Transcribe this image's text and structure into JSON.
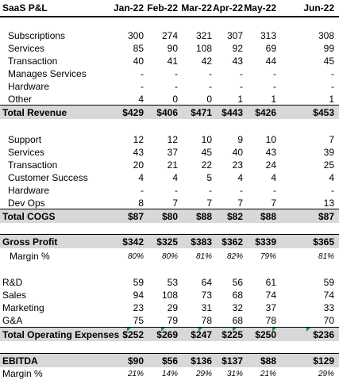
{
  "title": "SaaS P&L",
  "months": [
    "Jan-22",
    "Feb-22",
    "Mar-22",
    "Apr-22",
    "May-22",
    "Jun-22"
  ],
  "revenue": {
    "items": [
      {
        "label": "Subscriptions",
        "values": [
          "300",
          "274",
          "321",
          "307",
          "313",
          "308"
        ]
      },
      {
        "label": "Services",
        "values": [
          "85",
          "90",
          "108",
          "92",
          "69",
          "99"
        ]
      },
      {
        "label": "Transaction",
        "values": [
          "40",
          "41",
          "42",
          "43",
          "44",
          "45"
        ]
      },
      {
        "label": "Manages Services",
        "values": [
          "-",
          "-",
          "-",
          "-",
          "-",
          "-"
        ]
      },
      {
        "label": "Hardware",
        "values": [
          "-",
          "-",
          "-",
          "-",
          "-",
          "-"
        ]
      },
      {
        "label": "Other",
        "values": [
          "4",
          "0",
          "0",
          "1",
          "1",
          "1"
        ]
      }
    ],
    "total_label": "Total Revenue",
    "total_values": [
      "$429",
      "$406",
      "$471",
      "$443",
      "$426",
      "$453"
    ]
  },
  "cogs": {
    "items": [
      {
        "label": "Support",
        "values": [
          "12",
          "12",
          "10",
          "9",
          "10",
          "7"
        ]
      },
      {
        "label": "Services",
        "values": [
          "43",
          "37",
          "45",
          "40",
          "43",
          "39"
        ]
      },
      {
        "label": "Transaction",
        "values": [
          "20",
          "21",
          "22",
          "23",
          "24",
          "25"
        ]
      },
      {
        "label": "Customer Success",
        "values": [
          "4",
          "4",
          "5",
          "4",
          "4",
          "4"
        ]
      },
      {
        "label": "Hardware",
        "values": [
          "-",
          "-",
          "-",
          "-",
          "-",
          "-"
        ]
      },
      {
        "label": "Dev Ops",
        "values": [
          "8",
          "7",
          "7",
          "7",
          "7",
          "13"
        ]
      }
    ],
    "total_label": "Total COGS",
    "total_values": [
      "$87",
      "$80",
      "$88",
      "$82",
      "$88",
      "$87"
    ]
  },
  "gross_profit": {
    "label": "Gross Profit",
    "values": [
      "$342",
      "$325",
      "$383",
      "$362",
      "$339",
      "$365"
    ],
    "margin_label": "Margin %",
    "margin_values": [
      "80%",
      "80%",
      "81%",
      "82%",
      "79%",
      "81%"
    ]
  },
  "opex": {
    "items": [
      {
        "label": "R&D",
        "values": [
          "59",
          "53",
          "64",
          "56",
          "61",
          "59"
        ]
      },
      {
        "label": "Sales",
        "values": [
          "94",
          "108",
          "73",
          "68",
          "74",
          "74"
        ]
      },
      {
        "label": "Marketing",
        "values": [
          "23",
          "29",
          "31",
          "32",
          "37",
          "33"
        ]
      },
      {
        "label": "G&A",
        "values": [
          "75",
          "79",
          "78",
          "68",
          "78",
          "70"
        ]
      }
    ],
    "total_label": "Total Operating Expenses",
    "total_values": [
      "$252",
      "$269",
      "$247",
      "$225",
      "$250",
      "$236"
    ]
  },
  "ebitda": {
    "label": "EBITDA",
    "values": [
      "$90",
      "$56",
      "$136",
      "$137",
      "$88",
      "$129"
    ],
    "margin_label": "Margin %",
    "margin_values": [
      "21%",
      "14%",
      "29%",
      "31%",
      "21%",
      "29%"
    ]
  }
}
